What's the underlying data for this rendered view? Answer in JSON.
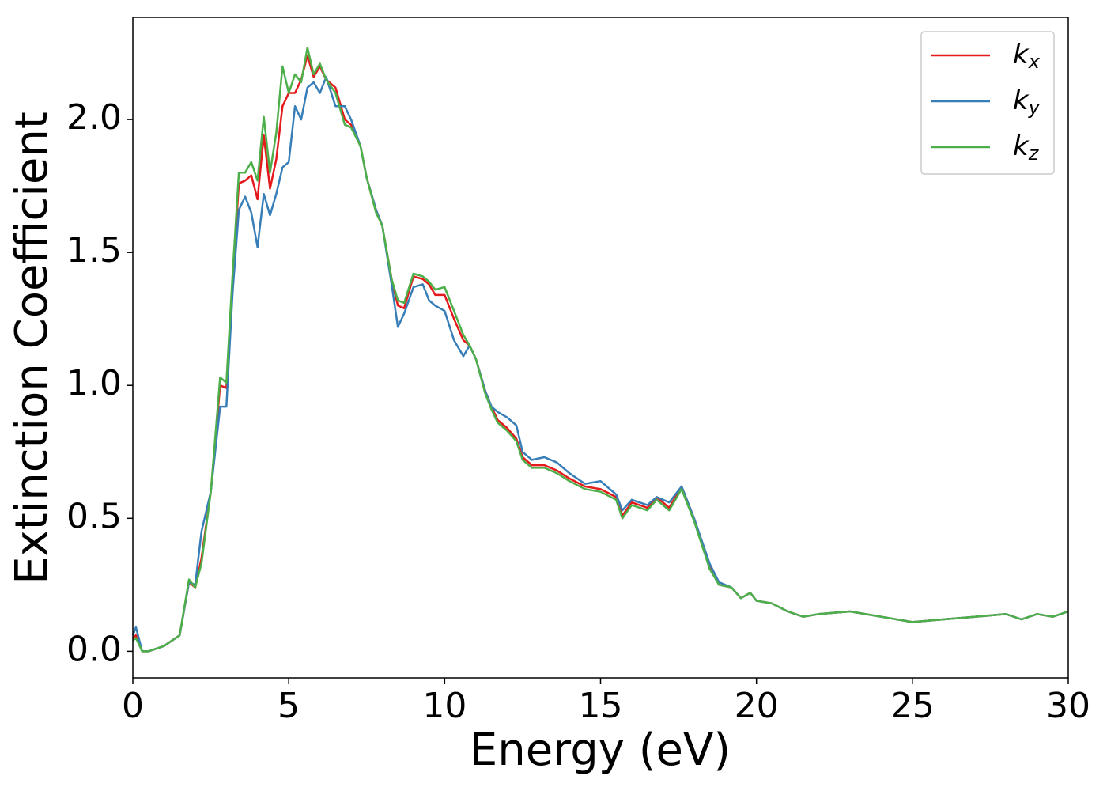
{
  "chart_data": {
    "type": "line",
    "xlabel": "Energy (eV)",
    "ylabel": "Extinction Coefficient",
    "x": [
      0,
      0.1,
      0.3,
      0.5,
      1.0,
      1.5,
      1.8,
      2.0,
      2.2,
      2.5,
      2.8,
      3.0,
      3.2,
      3.4,
      3.6,
      3.8,
      4.0,
      4.2,
      4.4,
      4.6,
      4.8,
      5.0,
      5.2,
      5.4,
      5.6,
      5.8,
      6.0,
      6.2,
      6.5,
      6.8,
      7.0,
      7.3,
      7.5,
      7.8,
      8.0,
      8.3,
      8.5,
      8.7,
      9.0,
      9.3,
      9.5,
      9.7,
      10.0,
      10.3,
      10.6,
      10.8,
      11.0,
      11.3,
      11.5,
      11.7,
      12.0,
      12.3,
      12.5,
      12.8,
      13.2,
      13.6,
      14.0,
      14.5,
      15.0,
      15.5,
      15.7,
      16.0,
      16.5,
      16.8,
      17.2,
      17.6,
      18.0,
      18.5,
      18.8,
      19.2,
      19.5,
      19.8,
      20.0,
      20.5,
      21.0,
      21.5,
      22.0,
      23.0,
      24.0,
      25.0,
      26.0,
      27.0,
      28.0,
      28.5,
      29.0,
      29.5,
      30.0
    ],
    "series": [
      {
        "name": "kx",
        "color": "#e41a1c",
        "values": [
          0.05,
          0.06,
          0.0,
          0.0,
          0.02,
          0.06,
          0.26,
          0.24,
          0.35,
          0.6,
          1.0,
          0.99,
          1.4,
          1.76,
          1.77,
          1.79,
          1.7,
          1.94,
          1.74,
          1.85,
          2.05,
          2.1,
          2.1,
          2.15,
          2.24,
          2.16,
          2.2,
          2.15,
          2.12,
          2.0,
          1.98,
          1.9,
          1.78,
          1.66,
          1.6,
          1.4,
          1.3,
          1.29,
          1.41,
          1.4,
          1.38,
          1.34,
          1.34,
          1.25,
          1.17,
          1.15,
          1.1,
          0.98,
          0.92,
          0.87,
          0.84,
          0.8,
          0.73,
          0.7,
          0.7,
          0.68,
          0.65,
          0.62,
          0.61,
          0.58,
          0.51,
          0.56,
          0.54,
          0.58,
          0.54,
          0.62,
          0.5,
          0.32,
          0.25,
          0.24,
          0.2,
          0.22,
          0.19,
          0.18,
          0.15,
          0.13,
          0.14,
          0.15,
          0.13,
          0.11,
          0.12,
          0.13,
          0.14,
          0.12,
          0.14,
          0.13,
          0.15
        ]
      },
      {
        "name": "ky",
        "color": "#377eb8",
        "values": [
          0.06,
          0.09,
          0.0,
          0.0,
          0.02,
          0.06,
          0.26,
          0.25,
          0.45,
          0.6,
          0.92,
          0.92,
          1.35,
          1.66,
          1.71,
          1.65,
          1.52,
          1.72,
          1.64,
          1.72,
          1.82,
          1.84,
          2.05,
          2.0,
          2.12,
          2.14,
          2.1,
          2.16,
          2.05,
          2.05,
          2.0,
          1.9,
          1.78,
          1.66,
          1.6,
          1.38,
          1.22,
          1.27,
          1.37,
          1.38,
          1.32,
          1.3,
          1.28,
          1.17,
          1.11,
          1.15,
          1.1,
          0.98,
          0.92,
          0.9,
          0.88,
          0.85,
          0.75,
          0.72,
          0.73,
          0.71,
          0.67,
          0.63,
          0.64,
          0.59,
          0.53,
          0.57,
          0.55,
          0.58,
          0.56,
          0.62,
          0.5,
          0.33,
          0.26,
          0.24,
          0.2,
          0.22,
          0.19,
          0.18,
          0.15,
          0.13,
          0.14,
          0.15,
          0.13,
          0.11,
          0.12,
          0.13,
          0.14,
          0.12,
          0.14,
          0.13,
          0.15
        ]
      },
      {
        "name": "kz",
        "color": "#4daf4a",
        "values": [
          0.04,
          0.05,
          0.0,
          0.0,
          0.02,
          0.06,
          0.27,
          0.24,
          0.33,
          0.6,
          1.03,
          1.01,
          1.42,
          1.8,
          1.8,
          1.84,
          1.77,
          2.01,
          1.8,
          1.95,
          2.2,
          2.1,
          2.17,
          2.14,
          2.27,
          2.17,
          2.21,
          2.15,
          2.1,
          1.98,
          1.97,
          1.9,
          1.78,
          1.65,
          1.6,
          1.4,
          1.32,
          1.31,
          1.42,
          1.41,
          1.39,
          1.36,
          1.37,
          1.28,
          1.19,
          1.15,
          1.1,
          0.97,
          0.91,
          0.86,
          0.83,
          0.79,
          0.72,
          0.69,
          0.69,
          0.67,
          0.64,
          0.61,
          0.6,
          0.57,
          0.5,
          0.55,
          0.53,
          0.57,
          0.53,
          0.61,
          0.49,
          0.31,
          0.25,
          0.24,
          0.2,
          0.22,
          0.19,
          0.18,
          0.15,
          0.13,
          0.14,
          0.15,
          0.13,
          0.11,
          0.12,
          0.13,
          0.14,
          0.12,
          0.14,
          0.13,
          0.15
        ]
      }
    ],
    "xlim": [
      0,
      30
    ],
    "ylim": [
      -0.1,
      2.384
    ],
    "xticks": [
      0,
      5,
      10,
      15,
      20,
      25,
      30
    ],
    "yticks": [
      {
        "value": 0,
        "label": "0.0"
      },
      0.5,
      {
        "value": 1,
        "label": "1.0"
      },
      1.5,
      {
        "value": 2,
        "label": "2.0"
      }
    ],
    "legend": "upper right",
    "grid": false
  }
}
